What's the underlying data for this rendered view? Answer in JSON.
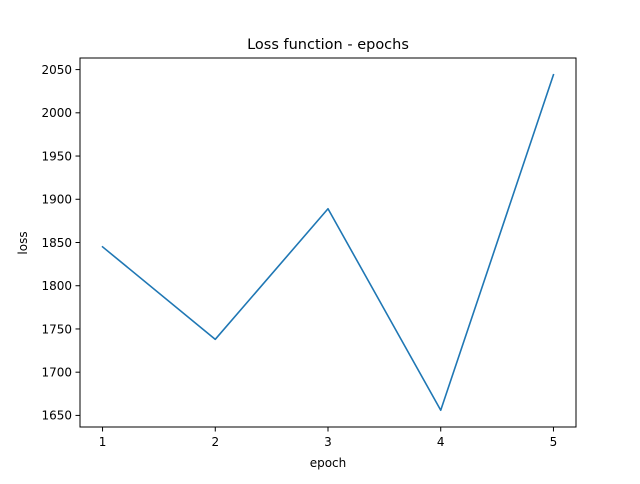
{
  "chart_data": {
    "type": "line",
    "title": "Loss function - epochs",
    "xlabel": "epoch",
    "ylabel": "loss",
    "x": [
      1,
      2,
      3,
      4,
      5
    ],
    "series": [
      {
        "values": [
          1845,
          1738,
          1889,
          1656,
          2044
        ],
        "color": "#1f77b4"
      }
    ],
    "xticks": [
      "1",
      "2",
      "3",
      "4",
      "5"
    ],
    "yticks": [
      "1650",
      "1700",
      "1750",
      "1800",
      "1850",
      "1900",
      "1950",
      "2000",
      "2050"
    ],
    "xlim": [
      0.8,
      5.2
    ],
    "ylim": [
      1636.6,
      2063.4
    ],
    "grid": false,
    "legend": "none"
  }
}
